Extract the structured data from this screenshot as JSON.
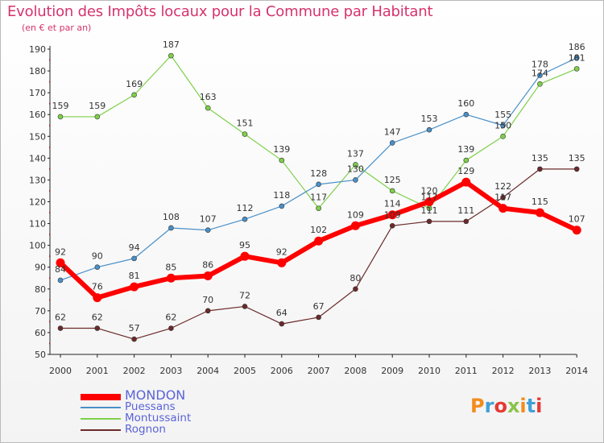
{
  "title": "Evolution des Impôts locaux pour la Commune par Habitant",
  "subtitle": "(en € et par an)",
  "brand": "Proxiti",
  "chart_data": {
    "type": "line",
    "x": [
      "2000",
      "2001",
      "2002",
      "2003",
      "2004",
      "2005",
      "2006",
      "2007",
      "2008",
      "2009",
      "2010",
      "2011",
      "2012",
      "2013",
      "2014"
    ],
    "ylim": [
      50,
      190
    ],
    "yticks": [
      50,
      60,
      70,
      80,
      90,
      100,
      110,
      120,
      130,
      140,
      150,
      160,
      170,
      180,
      190
    ],
    "grid": false,
    "legend_position": "bottom-left",
    "series": [
      {
        "name": "MONDON",
        "color": "#ff0000",
        "values": [
          92,
          76,
          81,
          85,
          86,
          95,
          92,
          102,
          109,
          114,
          120,
          129,
          117,
          115,
          107
        ]
      },
      {
        "name": "Puessans",
        "color": "#4a90c8",
        "values": [
          84,
          90,
          94,
          108,
          107,
          112,
          118,
          128,
          130,
          147,
          153,
          160,
          155,
          178,
          186
        ]
      },
      {
        "name": "Montussaint",
        "color": "#7ed04a",
        "values": [
          159,
          159,
          169,
          187,
          163,
          151,
          139,
          117,
          137,
          125,
          117,
          139,
          150,
          174,
          181
        ]
      },
      {
        "name": "Rognon",
        "color": "#6b2a2a",
        "values": [
          62,
          62,
          57,
          62,
          70,
          72,
          64,
          67,
          80,
          109,
          111,
          111,
          122,
          135,
          135
        ]
      }
    ]
  }
}
